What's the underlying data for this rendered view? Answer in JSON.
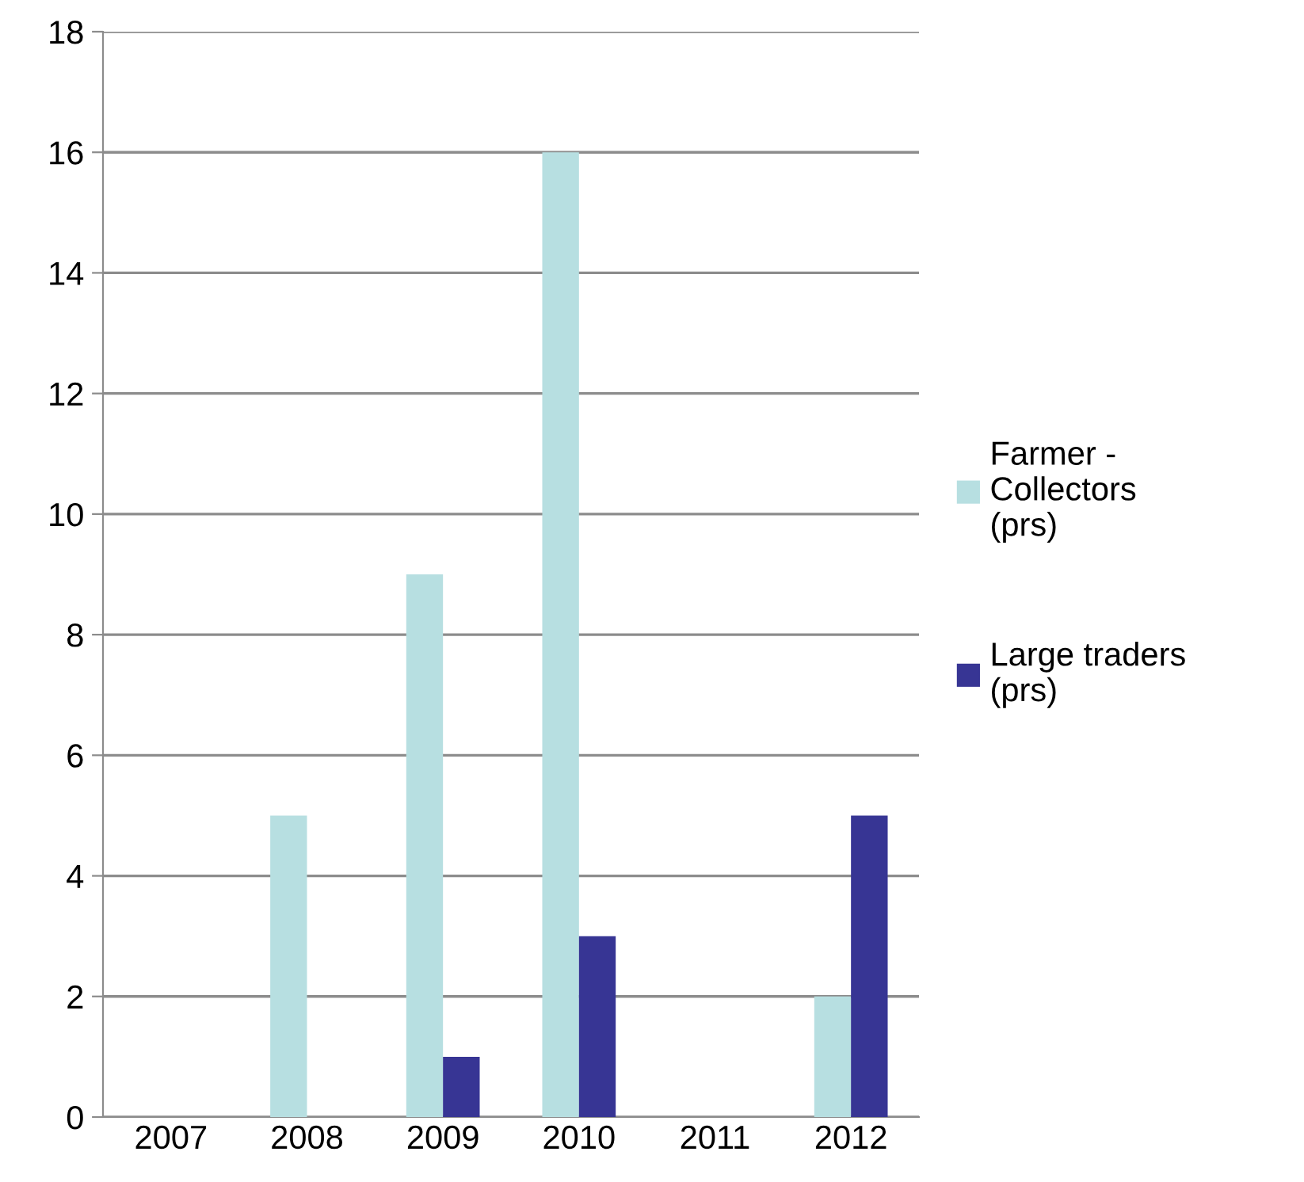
{
  "chart_data": {
    "type": "bar",
    "categories": [
      "2007",
      "2008",
      "2009",
      "2010",
      "2011",
      "2012"
    ],
    "series": [
      {
        "name": "Farmer - Collectors (prs)",
        "color": "#b7dfe1",
        "values": [
          0,
          5,
          9,
          16,
          0,
          2
        ]
      },
      {
        "name": "Large traders (prs)",
        "color": "#373594",
        "values": [
          0,
          0,
          1,
          3,
          0,
          5
        ]
      }
    ],
    "ylim": [
      0,
      18
    ],
    "yticks": [
      0,
      2,
      4,
      6,
      8,
      10,
      12,
      14,
      16,
      18
    ],
    "grid": "y",
    "legend": "right"
  }
}
